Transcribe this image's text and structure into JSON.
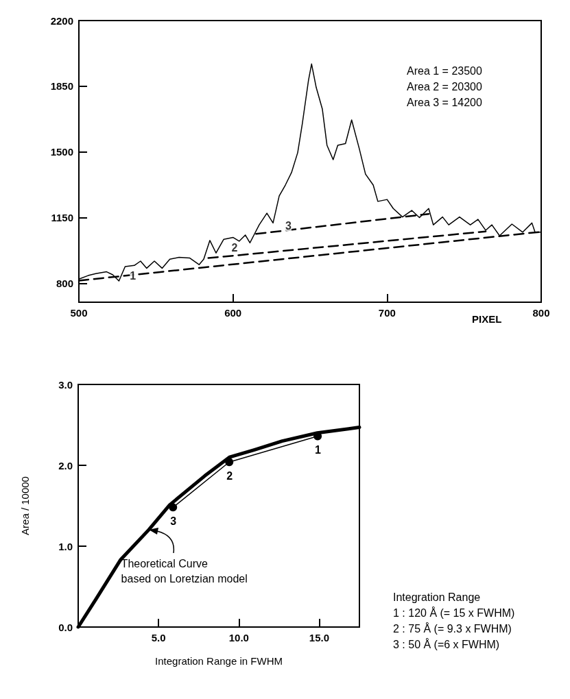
{
  "chart_data": [
    {
      "type": "line",
      "xlabel": "PIXEL",
      "xlim": [
        500,
        800
      ],
      "ylim": [
        700,
        2200
      ],
      "xticks": [
        500,
        600,
        700,
        800
      ],
      "yticks": [
        800,
        1150,
        1500,
        1850,
        2200
      ],
      "grid": false,
      "marker": "none",
      "annotations": [
        "Area 1 = 23500",
        "Area 2 = 20300",
        "Area 3 = 14200",
        {
          "text": "1",
          "x": 535,
          "y": 842
        },
        {
          "text": "2",
          "x": 601,
          "y": 991
        },
        {
          "text": "3",
          "x": 636,
          "y": 1108
        }
      ],
      "series": [
        {
          "color": "#000000",
          "line_style": "solid",
          "x": [
            500,
            506,
            511,
            518,
            522,
            526,
            530,
            536,
            540,
            544,
            549,
            554,
            559,
            565,
            572,
            578,
            581,
            585,
            589,
            594,
            600,
            604,
            608,
            611,
            614,
            617,
            622,
            626,
            630,
            634,
            638,
            642,
            645,
            649,
            651,
            654,
            658,
            661,
            665,
            668,
            673,
            677,
            682,
            686,
            691,
            694,
            700,
            704,
            710,
            716,
            721,
            727,
            730,
            736,
            740,
            747,
            754,
            759,
            764,
            768,
            773,
            781,
            788,
            794,
            796,
            800
          ],
          "values": [
            823,
            842,
            852,
            862,
            846,
            813,
            890,
            896,
            919,
            881,
            919,
            881,
            929,
            939,
            935,
            900,
            929,
            1029,
            962,
            1035,
            1045,
            1025,
            1058,
            1016,
            1064,
            1112,
            1174,
            1122,
            1266,
            1324,
            1391,
            1497,
            1651,
            1882,
            1969,
            1844,
            1728,
            1536,
            1459,
            1536,
            1545,
            1671,
            1516,
            1382,
            1324,
            1237,
            1247,
            1199,
            1154,
            1189,
            1151,
            1199,
            1112,
            1154,
            1112,
            1154,
            1112,
            1141,
            1083,
            1112,
            1054,
            1116,
            1073,
            1122,
            1073,
            1073
          ]
        },
        {
          "color": "#000000",
          "line_style": "dashed",
          "x": [
            500,
            800
          ],
          "values": [
            815,
            1075
          ]
        },
        {
          "color": "#000000",
          "line_style": "dashed",
          "x": [
            584,
            764
          ],
          "values": [
            935,
            1077
          ]
        },
        {
          "color": "#000000",
          "line_style": "dashed",
          "x": [
            615,
            727
          ],
          "values": [
            1064,
            1170
          ]
        }
      ]
    },
    {
      "type": "line",
      "xlabel": "Integration Range in FWHM",
      "ylabel": "Area / 10000",
      "xlim": [
        0,
        17.5
      ],
      "ylim": [
        0,
        3
      ],
      "xticks": [
        {
          "value": 5,
          "label": "5.0"
        },
        {
          "value": 10,
          "label": "10.0"
        },
        {
          "value": 15,
          "label": "15.0"
        }
      ],
      "yticks": [
        {
          "value": 0,
          "label": "0.0"
        },
        {
          "value": 1,
          "label": "1.0"
        },
        {
          "value": 2,
          "label": "2.0"
        },
        {
          "value": 3,
          "label": "3.0"
        }
      ],
      "grid": false,
      "annotations": [
        {
          "text": "Theoretical Curve\nbased on Loretzian model",
          "x": 4.38,
          "y": 1.2
        },
        "Integration Range",
        "1 : 120 Å (= 15 x FWHM)",
        "2 : 75 Å (= 9.3 x FWHM)",
        "3 : 50 Å (=6 x FWHM)",
        "1",
        "2",
        "3"
      ],
      "series": [
        {
          "color": "#000000",
          "marker": "none",
          "line_style": "solid",
          "x": [
            0,
            1.09,
            2.63,
            4.38,
            5.69,
            7.88,
            9.41,
            10.94,
            12.69,
            14.88,
            17.5
          ],
          "values": [
            0,
            0.34,
            0.83,
            1.2,
            1.51,
            1.87,
            2.1,
            2.19,
            2.3,
            2.4,
            2.47
          ]
        },
        {
          "color": "#000000",
          "marker": "circle",
          "line_style": "solid",
          "x": [
            5.9,
            9.4,
            14.9
          ],
          "values": [
            1.48,
            2.04,
            2.36
          ]
        }
      ]
    }
  ]
}
